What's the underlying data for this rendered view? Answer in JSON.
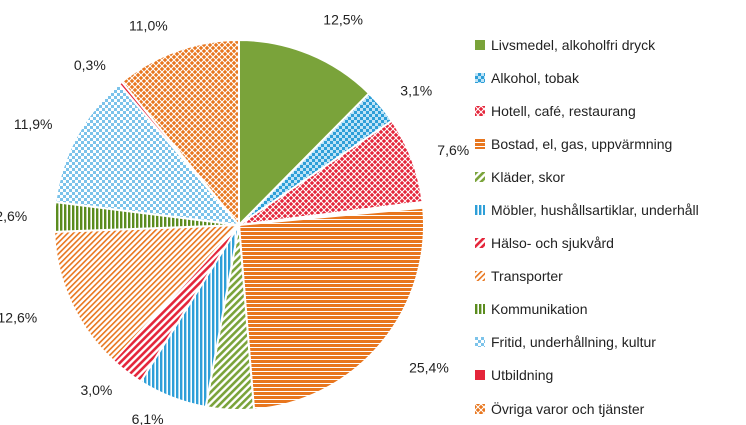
{
  "chart_data": {
    "type": "pie",
    "categories": [
      "Livsmedel, alkoholfri dryck",
      "Alkohol, tobak",
      "Hotell, café, restaurang",
      "Bostad, el, gas, uppvärmning",
      "Kläder, skor",
      "Möbler, hushållsartiklar, underhåll",
      "Hälso- och sjukvård",
      "Transporter",
      "Kommunikation",
      "Fritid, underhållning, kultur",
      "Utbildning",
      "Övriga varor och tjänster"
    ],
    "values": [
      12.5,
      3.1,
      7.6,
      0.5,
      25.4,
      4.2,
      6.1,
      3.0,
      12.6,
      2.6,
      11.9,
      0.3,
      11.0
    ],
    "slice_categories": [
      0,
      1,
      2,
      12,
      3,
      4,
      5,
      6,
      7,
      8,
      9,
      10,
      11
    ],
    "labels": [
      "12,5%",
      "3,1%",
      "7,6%",
      "",
      "25,4%",
      "",
      "6,1%",
      "3,0%",
      "12,6%",
      "2,6%",
      "11,9%",
      "0,3%",
      "11,0%"
    ],
    "colors": [
      "#7aa33a",
      "#2e9fd8",
      "#e4253a",
      "#ffffff",
      "#e8761e",
      "#7aa33a",
      "#2e9fd8",
      "#e4253a",
      "#e8761e",
      "#5b8c1e",
      "#2e9fd8",
      "#e4253a",
      "#e8761e"
    ],
    "patterns": [
      "solid",
      "check",
      "diamond",
      "solid",
      "hlines",
      "diag",
      "vlines",
      "diag",
      "diagthin",
      "vlines",
      "check",
      "solid",
      "diamond"
    ],
    "legend_position": "right"
  }
}
